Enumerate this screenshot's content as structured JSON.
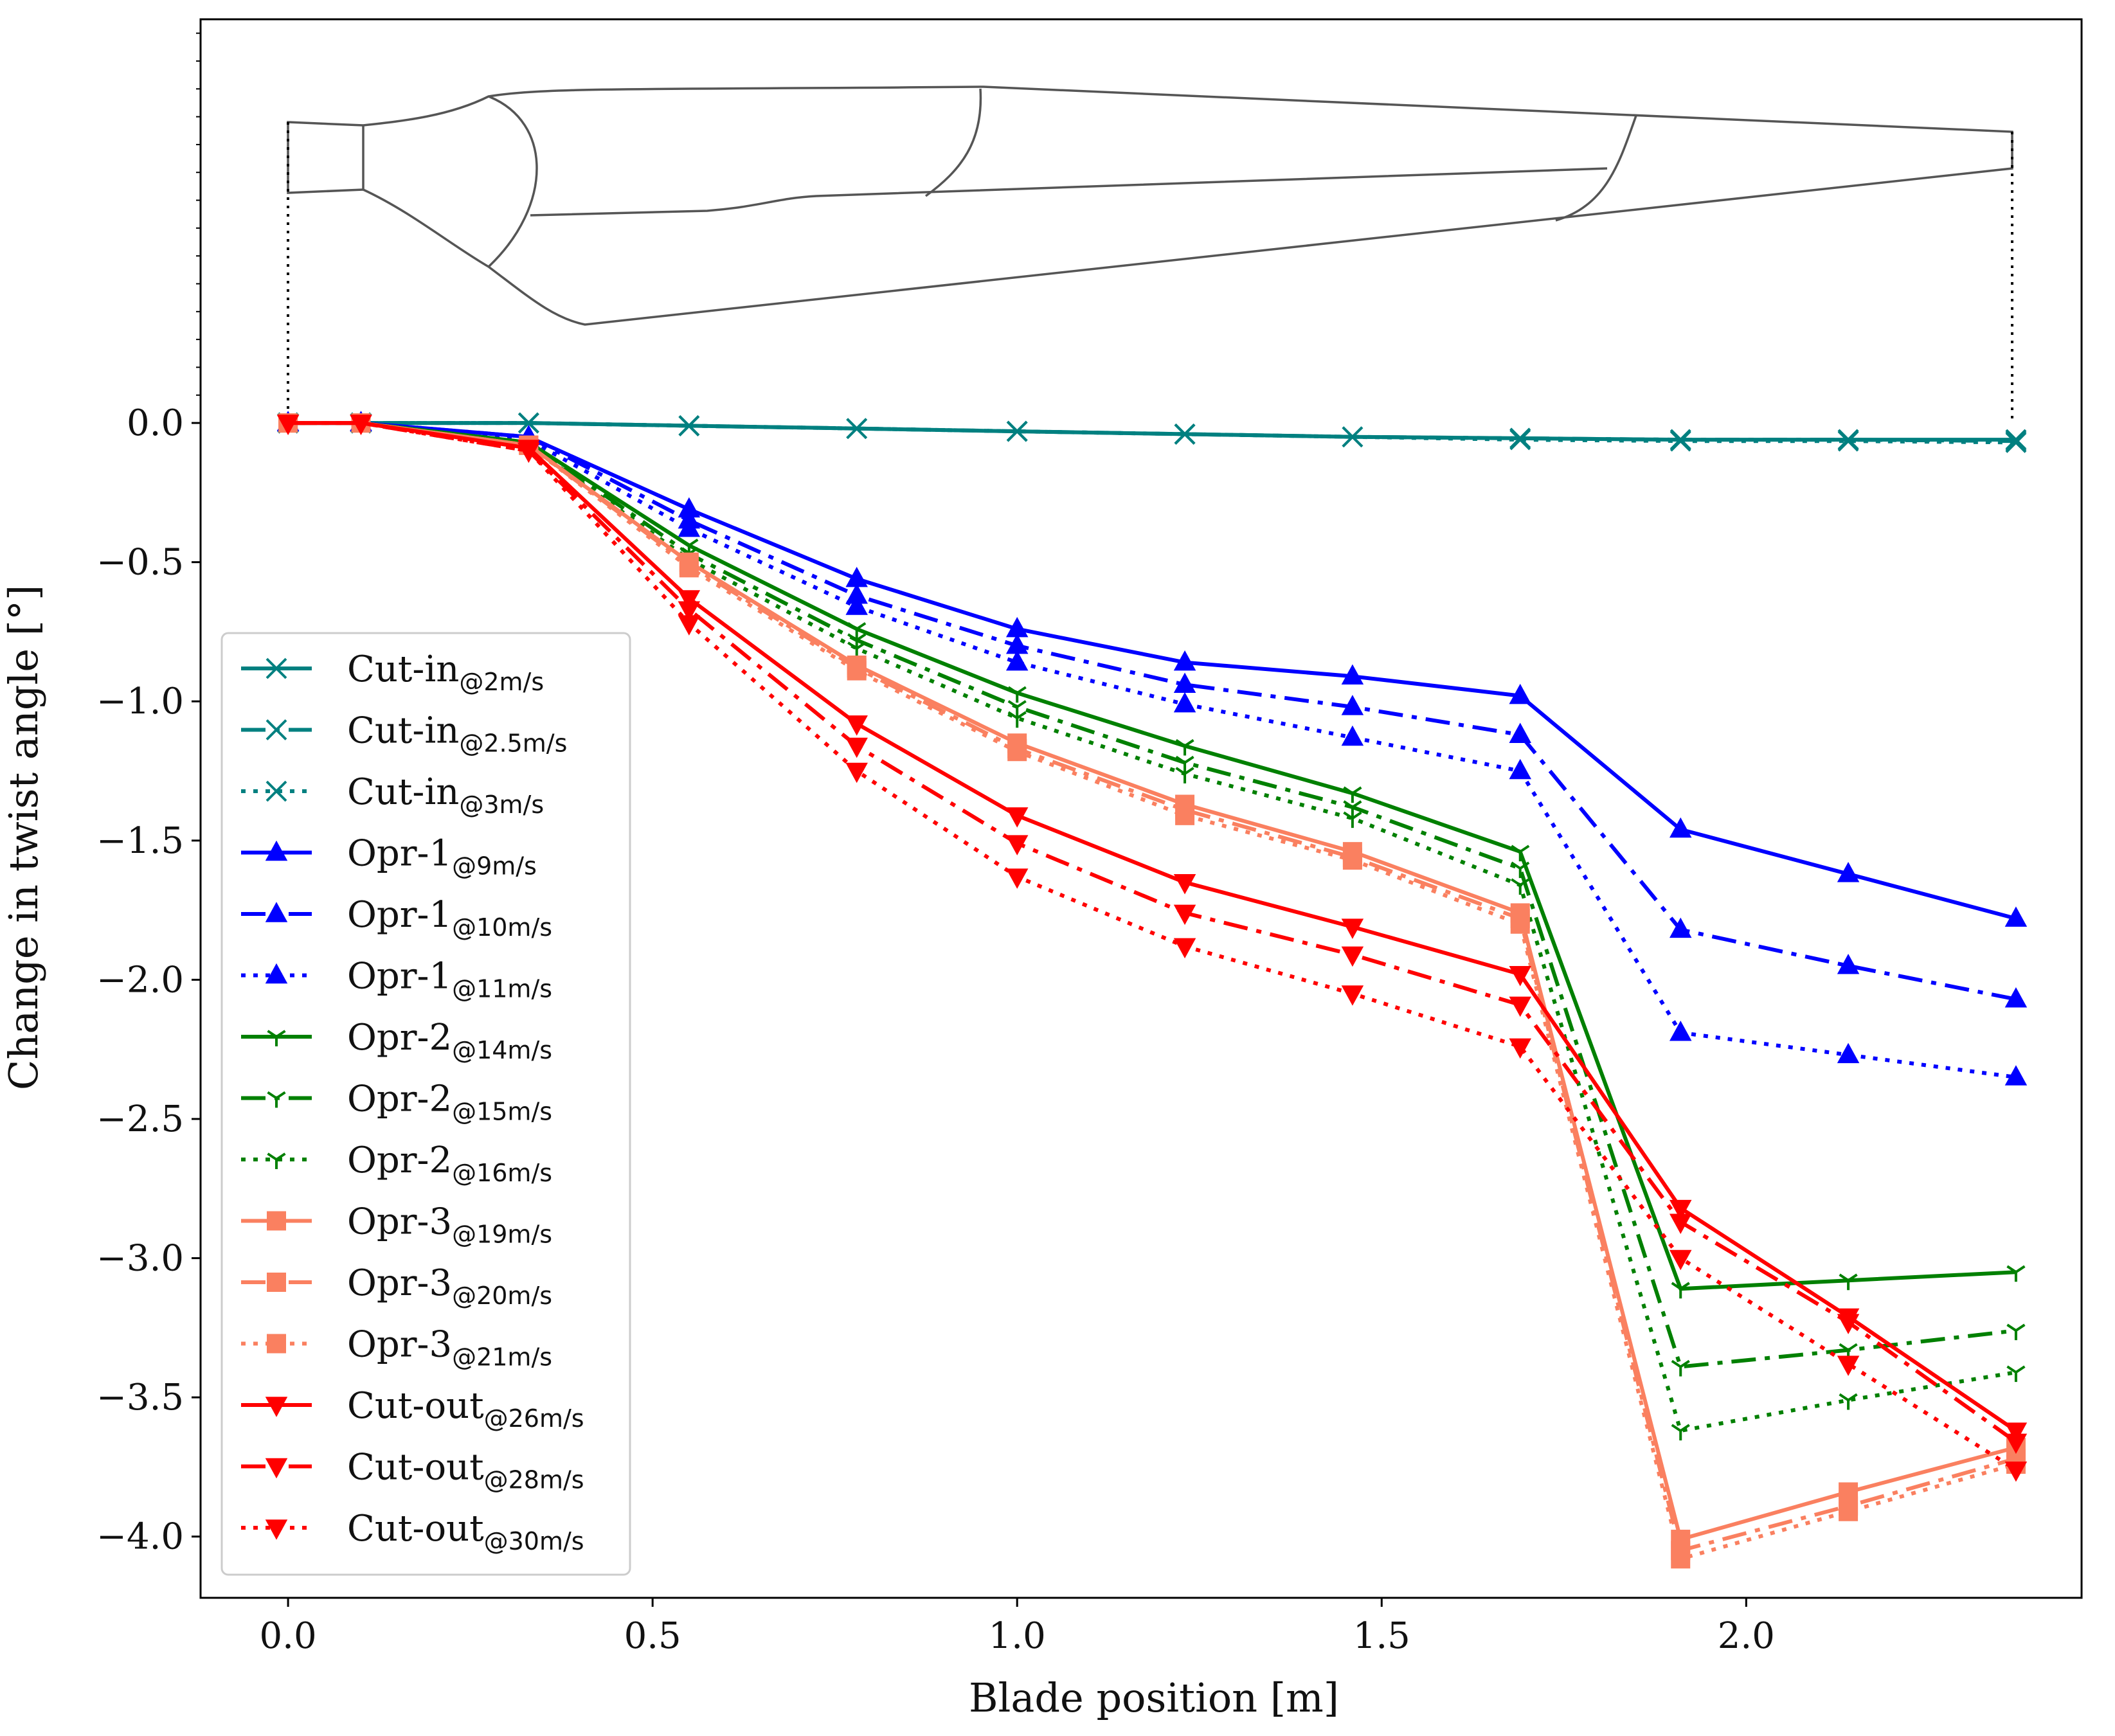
{
  "chart_data": {
    "type": "line",
    "title": "",
    "xlabel": "Blade position [m]",
    "ylabel": "Change in twist angle [°]",
    "xlim": [
      -0.12,
      2.46
    ],
    "ylim": [
      -4.22,
      1.45
    ],
    "xticks": [
      0.0,
      0.5,
      1.0,
      1.5,
      2.0
    ],
    "xtick_labels": [
      "0.0",
      "0.5",
      "1.0",
      "1.5",
      "2.0"
    ],
    "yticks": [
      0.0,
      -0.5,
      -1.0,
      -1.5,
      -2.0,
      -2.5,
      -3.0,
      -3.5,
      -4.0
    ],
    "ytick_labels": [
      "0.0",
      "−0.5",
      "−1.0",
      "−1.5",
      "−2.0",
      "−2.5",
      "−3.0",
      "−3.5",
      "−4.0"
    ],
    "grid": false,
    "legend_position": "lower-left",
    "x": [
      0.0,
      0.1,
      0.33,
      0.55,
      0.78,
      1.0,
      1.23,
      1.46,
      1.69,
      1.91,
      2.14,
      2.37
    ],
    "series": [
      {
        "name": "Cut-in",
        "sub": "@2m/s",
        "color": "#008080",
        "dash": "solid",
        "marker": "x",
        "values": [
          0.0,
          0.0,
          0.0,
          -0.01,
          -0.02,
          -0.03,
          -0.04,
          -0.05,
          -0.055,
          -0.06,
          -0.06,
          -0.06
        ]
      },
      {
        "name": "Cut-in",
        "sub": "@2.5m/s",
        "color": "#008080",
        "dash": "dashdot",
        "marker": "x",
        "values": [
          0.0,
          0.0,
          0.0,
          -0.01,
          -0.02,
          -0.03,
          -0.04,
          -0.05,
          -0.055,
          -0.06,
          -0.06,
          -0.065
        ]
      },
      {
        "name": "Cut-in",
        "sub": "@3m/s",
        "color": "#008080",
        "dash": "dotted",
        "marker": "x",
        "values": [
          0.0,
          0.0,
          0.0,
          -0.01,
          -0.02,
          -0.03,
          -0.04,
          -0.05,
          -0.06,
          -0.065,
          -0.065,
          -0.07
        ]
      },
      {
        "name": "Opr-1",
        "sub": "@9m/s",
        "color": "#0000ff",
        "dash": "solid",
        "marker": "triangle-up",
        "values": [
          0.0,
          0.0,
          -0.05,
          -0.31,
          -0.56,
          -0.74,
          -0.86,
          -0.91,
          -0.98,
          -1.46,
          -1.62,
          -1.78
        ]
      },
      {
        "name": "Opr-1",
        "sub": "@10m/s",
        "color": "#0000ff",
        "dash": "dashdot",
        "marker": "triangle-up",
        "values": [
          0.0,
          0.0,
          -0.05,
          -0.35,
          -0.62,
          -0.8,
          -0.94,
          -1.02,
          -1.12,
          -1.82,
          -1.95,
          -2.07
        ]
      },
      {
        "name": "Opr-1",
        "sub": "@11m/s",
        "color": "#0000ff",
        "dash": "dotted",
        "marker": "triangle-up",
        "values": [
          0.0,
          0.0,
          -0.06,
          -0.38,
          -0.66,
          -0.86,
          -1.01,
          -1.13,
          -1.25,
          -2.19,
          -2.27,
          -2.35
        ]
      },
      {
        "name": "Opr-2",
        "sub": "@14m/s",
        "color": "#008000",
        "dash": "solid",
        "marker": "tri",
        "values": [
          0.0,
          0.0,
          -0.07,
          -0.44,
          -0.74,
          -0.97,
          -1.16,
          -1.33,
          -1.54,
          -3.11,
          -3.08,
          -3.05
        ]
      },
      {
        "name": "Opr-2",
        "sub": "@15m/s",
        "color": "#008000",
        "dash": "dashdot",
        "marker": "tri",
        "values": [
          0.0,
          0.0,
          -0.07,
          -0.47,
          -0.78,
          -1.02,
          -1.22,
          -1.38,
          -1.6,
          -3.39,
          -3.33,
          -3.26
        ]
      },
      {
        "name": "Opr-2",
        "sub": "@16m/s",
        "color": "#008000",
        "dash": "dotted",
        "marker": "tri",
        "values": [
          0.0,
          0.0,
          -0.08,
          -0.49,
          -0.81,
          -1.06,
          -1.26,
          -1.42,
          -1.66,
          -3.62,
          -3.51,
          -3.41
        ]
      },
      {
        "name": "Opr-3",
        "sub": "@19m/s",
        "color": "#fa8060",
        "dash": "solid",
        "marker": "square",
        "values": [
          0.0,
          0.0,
          -0.08,
          -0.5,
          -0.87,
          -1.15,
          -1.37,
          -1.54,
          -1.76,
          -4.01,
          -3.84,
          -3.68
        ]
      },
      {
        "name": "Opr-3",
        "sub": "@20m/s",
        "color": "#fa8060",
        "dash": "dashdot",
        "marker": "square",
        "values": [
          0.0,
          0.0,
          -0.08,
          -0.51,
          -0.88,
          -1.17,
          -1.39,
          -1.56,
          -1.78,
          -4.05,
          -3.89,
          -3.72
        ]
      },
      {
        "name": "Opr-3",
        "sub": "@21m/s",
        "color": "#fa8060",
        "dash": "dotted",
        "marker": "square",
        "values": [
          0.0,
          0.0,
          -0.08,
          -0.52,
          -0.89,
          -1.18,
          -1.41,
          -1.57,
          -1.8,
          -4.08,
          -3.91,
          -3.74
        ]
      },
      {
        "name": "Cut-out",
        "sub": "@26m/s",
        "color": "#ff0000",
        "dash": "solid",
        "marker": "triangle-down",
        "values": [
          0.0,
          0.0,
          -0.09,
          -0.63,
          -1.08,
          -1.41,
          -1.65,
          -1.81,
          -1.98,
          -2.82,
          -3.21,
          -3.62
        ]
      },
      {
        "name": "Cut-out",
        "sub": "@28m/s",
        "color": "#ff0000",
        "dash": "dashdot",
        "marker": "triangle-down",
        "values": [
          0.0,
          0.0,
          -0.1,
          -0.67,
          -1.16,
          -1.51,
          -1.76,
          -1.91,
          -2.09,
          -2.87,
          -3.23,
          -3.66
        ]
      },
      {
        "name": "Cut-out",
        "sub": "@30m/s",
        "color": "#ff0000",
        "dash": "dotted",
        "marker": "triangle-down",
        "values": [
          0.0,
          0.0,
          -0.1,
          -0.72,
          -1.25,
          -1.63,
          -1.88,
          -2.05,
          -2.24,
          -3.0,
          -3.38,
          -3.76
        ]
      }
    ],
    "annotations": [
      {
        "type": "blade-schematic",
        "description": "blade planform outline drawn above the zero line, spanning from 0.0 m to 2.37 m"
      }
    ]
  }
}
